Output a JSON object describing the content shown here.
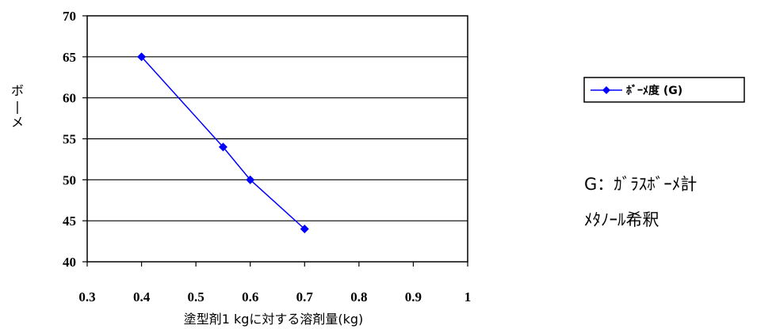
{
  "chart_data": {
    "type": "line",
    "xlabel": "塗型剤1 kgに対する溶剤量(kg)",
    "ylabel": "ボーメ",
    "xlim": [
      0.3,
      1
    ],
    "ylim": [
      40,
      70
    ],
    "x_ticks": [
      "0.3",
      "0.4",
      "0.5",
      "0.6",
      "0.7",
      "0.8",
      "0.9",
      "1"
    ],
    "y_ticks": [
      "70",
      "65",
      "60",
      "55",
      "50",
      "45",
      "40"
    ],
    "grid": "horizontal",
    "legend_position": "right",
    "series": [
      {
        "name": "ﾎﾞｰﾒ度 (G)",
        "color": "#0000ff",
        "marker": "diamond",
        "x": [
          0.4,
          0.55,
          0.6,
          0.7
        ],
        "y": [
          65,
          54,
          50,
          44
        ]
      }
    ]
  },
  "notes": {
    "line1": "G：ｶﾞﾗｽﾎﾞｰﾒ計",
    "line2": "ﾒﾀﾉｰﾙ希釈"
  }
}
